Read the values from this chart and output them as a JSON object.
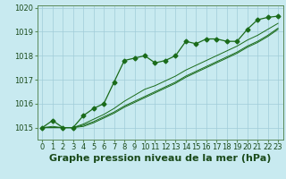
{
  "title": "Graphe pression niveau de la mer (hPa)",
  "background_color": "#c8eaf0",
  "grid_color": "#a0ccd8",
  "line_color": "#1a6b1a",
  "xlim_min": -0.5,
  "xlim_max": 23.5,
  "ylim_min": 1014.5,
  "ylim_max": 1020.1,
  "yticks": [
    1015,
    1016,
    1017,
    1018,
    1019,
    1020
  ],
  "xticks": [
    0,
    1,
    2,
    3,
    4,
    5,
    6,
    7,
    8,
    9,
    10,
    11,
    12,
    13,
    14,
    15,
    16,
    17,
    18,
    19,
    20,
    21,
    22,
    23
  ],
  "series": [
    [
      1015.0,
      1015.3,
      1015.0,
      1015.0,
      1015.5,
      1015.8,
      1016.0,
      1016.9,
      1017.8,
      1017.9,
      1018.0,
      1017.7,
      1017.8,
      1018.0,
      1018.6,
      1018.5,
      1018.7,
      1018.7,
      1018.6,
      1018.6,
      1019.1,
      1019.5,
      1019.6,
      1019.65
    ],
    [
      1015.0,
      1015.05,
      1015.0,
      1015.0,
      1015.15,
      1015.35,
      1015.55,
      1015.8,
      1016.1,
      1016.35,
      1016.6,
      1016.75,
      1016.95,
      1017.15,
      1017.4,
      1017.6,
      1017.8,
      1018.0,
      1018.2,
      1018.4,
      1018.65,
      1018.85,
      1019.1,
      1019.35
    ],
    [
      1015.0,
      1015.0,
      1015.0,
      1015.0,
      1015.1,
      1015.25,
      1015.45,
      1015.65,
      1015.9,
      1016.1,
      1016.3,
      1016.5,
      1016.7,
      1016.9,
      1017.15,
      1017.35,
      1017.55,
      1017.75,
      1017.95,
      1018.15,
      1018.4,
      1018.6,
      1018.85,
      1019.15
    ],
    [
      1015.0,
      1015.0,
      1015.0,
      1015.0,
      1015.05,
      1015.2,
      1015.4,
      1015.6,
      1015.85,
      1016.05,
      1016.25,
      1016.45,
      1016.65,
      1016.85,
      1017.1,
      1017.3,
      1017.5,
      1017.7,
      1017.9,
      1018.1,
      1018.35,
      1018.55,
      1018.8,
      1019.1
    ]
  ],
  "marker_series_index": 0,
  "title_fontsize": 8,
  "tick_fontsize": 6,
  "label_color": "#1a4a1a",
  "spine_color": "#5a8a5a"
}
